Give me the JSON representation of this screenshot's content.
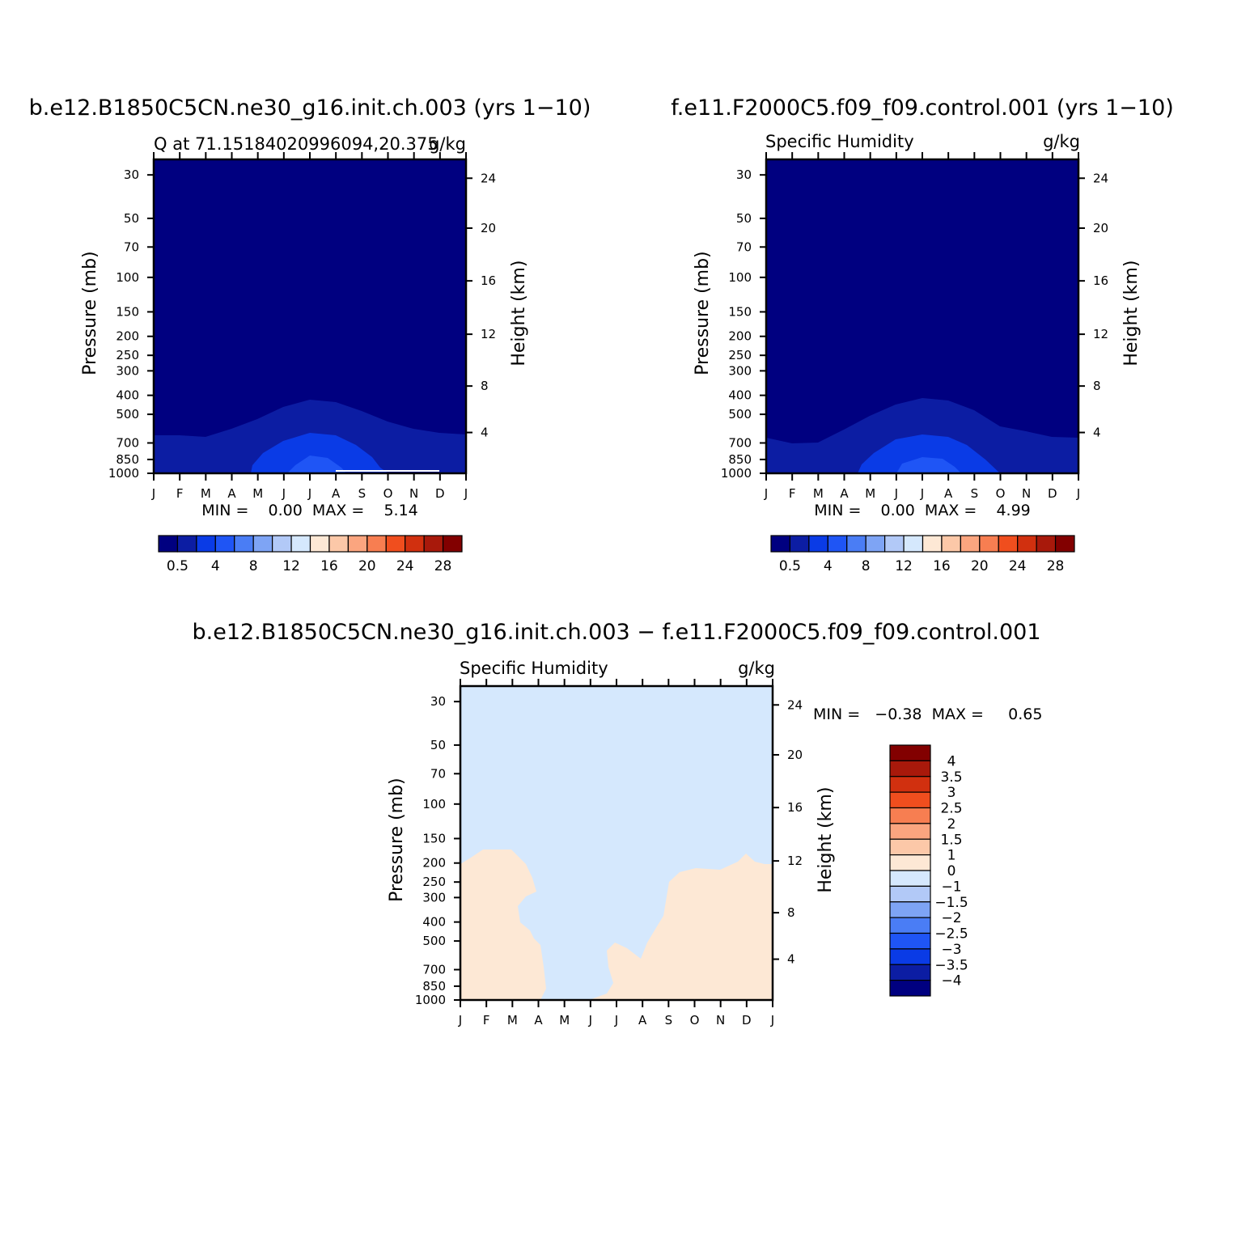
{
  "panels": [
    {
      "title": "b.e12.B1850C5CN.ne30_g16.init.ch.003 (yrs 1−10)",
      "left_label": "Q at 71.15184020996094,20.375",
      "right_label": "g/kg",
      "minmax": "MIN =    0.00  MAX =    5.14"
    },
    {
      "title": "f.e11.F2000C5.f09_f09.control.001 (yrs 1−10)",
      "left_label": "Specific Humidity",
      "right_label": "g/kg",
      "minmax": "MIN =    0.00  MAX =    4.99"
    },
    {
      "title": "b.e12.B1850C5CN.ne30_g16.init.ch.003 − f.e11.F2000C5.f09_f09.control.001",
      "left_label": "Specific Humidity",
      "right_label": "g/kg",
      "minmax": "MIN =   −0.38  MAX =     0.65"
    }
  ],
  "axes": {
    "ylabel": "Pressure (mb)",
    "ylabel2": "Height (km)",
    "xticks": [
      "J",
      "F",
      "M",
      "A",
      "M",
      "J",
      "J",
      "A",
      "S",
      "O",
      "N",
      "D",
      "J"
    ],
    "pressure_ticks": [
      "30",
      "50",
      "70",
      "100",
      "150",
      "200",
      "250",
      "300",
      "400",
      "500",
      "700",
      "850",
      "1000"
    ],
    "height_ticks": [
      "24",
      "20",
      "16",
      "12",
      "8",
      "4"
    ]
  },
  "colorbar_abs": {
    "colors": [
      "#000080",
      "#0c1da3",
      "#0a3be6",
      "#1f55f5",
      "#4a7df5",
      "#7ea4f5",
      "#b2c9f7",
      "#d5e8fd",
      "#fde8d5",
      "#fcc8a8",
      "#fba57f",
      "#f77e51",
      "#f04e1e",
      "#d1300f",
      "#a8190b",
      "#820000"
    ],
    "labels": [
      "0.5",
      "4",
      "8",
      "12",
      "16",
      "20",
      "24",
      "28"
    ]
  },
  "colorbar_diff": {
    "colors": [
      "#820000",
      "#a8190b",
      "#d1300f",
      "#f04e1e",
      "#f77e51",
      "#fba57f",
      "#fcc8a8",
      "#fde8d5",
      "#d5e8fd",
      "#b2c9f7",
      "#7ea4f5",
      "#4a7df5",
      "#1f55f5",
      "#0a3be6",
      "#0c1da3",
      "#000080"
    ],
    "labels": [
      "4",
      "3.5",
      "3",
      "2.5",
      "2",
      "1.5",
      "1",
      "0",
      "−1",
      "−1.5",
      "−2",
      "−2.5",
      "−3",
      "−3.5",
      "−4"
    ]
  },
  "chart_data": [
    {
      "type": "heatmap",
      "title": "b.e12.B1850C5CN.ne30_g16.init.ch.003 (yrs 1−10)",
      "subtitle": "Q at 71.15184020996094,20.375",
      "units": "g/kg",
      "x_categories": [
        "J",
        "F",
        "M",
        "A",
        "M",
        "J",
        "J",
        "A",
        "S",
        "O",
        "N",
        "D",
        "J"
      ],
      "y_scale": "log pressure",
      "ylim": [
        1000,
        25
      ],
      "min": 0.0,
      "max": 5.14,
      "contour_levels": [
        0.5,
        2,
        4,
        6,
        8,
        10,
        12,
        14,
        16,
        18,
        20,
        22,
        24,
        26,
        28
      ]
    },
    {
      "type": "heatmap",
      "title": "f.e11.F2000C5.f09_f09.control.001 (yrs 1−10)",
      "subtitle": "Specific Humidity",
      "units": "g/kg",
      "x_categories": [
        "J",
        "F",
        "M",
        "A",
        "M",
        "J",
        "J",
        "A",
        "S",
        "O",
        "N",
        "D",
        "J"
      ],
      "y_scale": "log pressure",
      "ylim": [
        1000,
        25
      ],
      "min": 0.0,
      "max": 4.99,
      "contour_levels": [
        0.5,
        2,
        4,
        6,
        8,
        10,
        12,
        14,
        16,
        18,
        20,
        22,
        24,
        26,
        28
      ]
    },
    {
      "type": "heatmap",
      "title": "b.e12.B1850C5CN.ne30_g16.init.ch.003 − f.e11.F2000C5.f09_f09.control.001",
      "subtitle": "Specific Humidity",
      "units": "g/kg",
      "x_categories": [
        "J",
        "F",
        "M",
        "A",
        "M",
        "J",
        "J",
        "A",
        "S",
        "O",
        "N",
        "D",
        "J"
      ],
      "y_scale": "log pressure",
      "ylim": [
        1000,
        25
      ],
      "min": -0.38,
      "max": 0.65,
      "contour_levels": [
        -4,
        -3.5,
        -3,
        -2.5,
        -2,
        -1.5,
        -1,
        0,
        1,
        1.5,
        2,
        2.5,
        3,
        3.5,
        4
      ]
    }
  ]
}
